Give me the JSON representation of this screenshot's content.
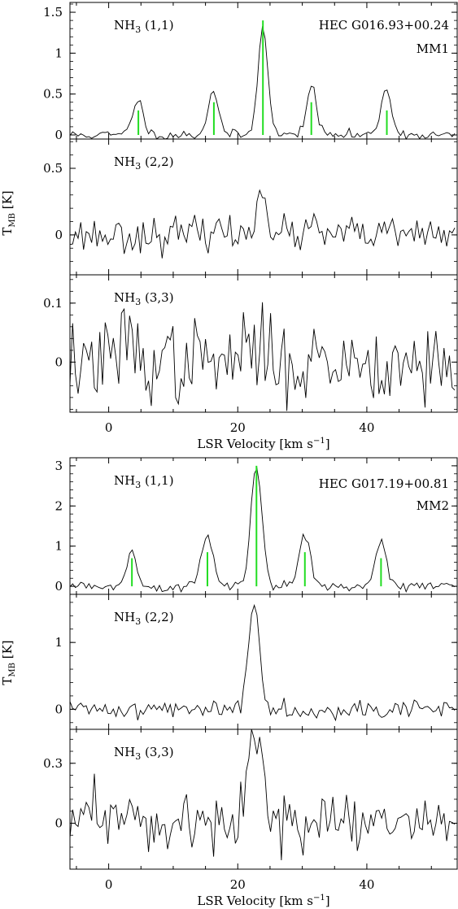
{
  "y_axis_label": {
    "main": "T",
    "sub": "MB",
    "unit": " [K]"
  },
  "x_axis_label": {
    "main": "LSR Velocity [km s",
    "sup": "−1",
    "close": "]"
  },
  "x_ticks": [
    "0",
    "20",
    "40"
  ],
  "colors": {
    "spectrum": "#000000",
    "hyperfine_markers": "#22dd22",
    "frame": "#000000"
  },
  "chart_data": [
    {
      "type": "line",
      "source": "HEC G016.93+00.24",
      "clump": "MM1",
      "xlim": [
        -6,
        54
      ],
      "panels": [
        {
          "transition": {
            "base": "NH",
            "sub": "3",
            "rest": " (1,1)"
          },
          "ylim": [
            -0.05,
            1.62
          ],
          "y_ticks": [
            0,
            0.5,
            1,
            1.5
          ],
          "y_tick_labels": [
            "0",
            "0.5",
            "1",
            "1.5"
          ],
          "hyperfine_markers": [
            {
              "x": 4.6,
              "height": 0.3
            },
            {
              "x": 16.3,
              "height": 0.4
            },
            {
              "x": 23.9,
              "height": 1.4
            },
            {
              "x": 31.4,
              "height": 0.4
            },
            {
              "x": 43.1,
              "height": 0.3
            }
          ],
          "peaks": [
            {
              "v": 4.5,
              "amp": 0.44,
              "w": 0.8
            },
            {
              "v": 16.2,
              "amp": 0.55,
              "w": 0.8
            },
            {
              "v": 23.9,
              "amp": 1.36,
              "w": 0.75
            },
            {
              "v": 31.4,
              "amp": 0.58,
              "w": 0.8
            },
            {
              "v": 43.0,
              "amp": 0.58,
              "w": 0.8
            }
          ],
          "noise": 0.03,
          "seed": 11
        },
        {
          "transition": {
            "base": "NH",
            "sub": "3",
            "rest": " (2,2)"
          },
          "ylim": [
            -0.3,
            0.72
          ],
          "y_ticks": [
            0,
            0.5
          ],
          "y_tick_labels": [
            "0",
            "0.5"
          ],
          "peaks": [
            {
              "v": 23.7,
              "amp": 0.42,
              "w": 0.7
            },
            {
              "v": 16.3,
              "amp": 0.08,
              "w": 0.6
            },
            {
              "v": 31.4,
              "amp": 0.05,
              "w": 0.6
            }
          ],
          "noise": 0.065,
          "seed": 23
        },
        {
          "transition": {
            "base": "NH",
            "sub": "3",
            "rest": " (3,3)"
          },
          "ylim": [
            -0.085,
            0.148
          ],
          "y_ticks": [
            0,
            0.1
          ],
          "y_tick_labels": [
            "0",
            "0.1"
          ],
          "peaks": [
            {
              "v": 3.0,
              "amp": 0.05,
              "w": 0.8
            },
            {
              "v": 22.5,
              "amp": 0.03,
              "w": 1.2
            }
          ],
          "noise": 0.035,
          "seed": 37
        }
      ]
    },
    {
      "type": "line",
      "source": "HEC G017.19+00.81",
      "clump": "MM2",
      "xlim": [
        -6,
        54
      ],
      "panels": [
        {
          "transition": {
            "base": "NH",
            "sub": "3",
            "rest": " (1,1)"
          },
          "ylim": [
            -0.2,
            3.2
          ],
          "y_ticks": [
            0,
            1,
            2,
            3
          ],
          "y_tick_labels": [
            "0",
            "1",
            "2",
            "3"
          ],
          "hyperfine_markers": [
            {
              "x": 3.6,
              "height": 0.7
            },
            {
              "x": 15.3,
              "height": 0.85
            },
            {
              "x": 22.9,
              "height": 3.0
            },
            {
              "x": 30.4,
              "height": 0.85
            },
            {
              "x": 42.2,
              "height": 0.7
            }
          ],
          "peaks": [
            {
              "v": 3.6,
              "amp": 0.82,
              "w": 0.85
            },
            {
              "v": 15.3,
              "amp": 1.3,
              "w": 0.9
            },
            {
              "v": 22.9,
              "amp": 3.0,
              "w": 0.85
            },
            {
              "v": 30.4,
              "amp": 1.3,
              "w": 0.9
            },
            {
              "v": 42.2,
              "amp": 1.15,
              "w": 0.9
            }
          ],
          "noise": 0.06,
          "seed": 5
        },
        {
          "transition": {
            "base": "NH",
            "sub": "3",
            "rest": " (2,2)"
          },
          "ylim": [
            -0.3,
            1.72
          ],
          "y_ticks": [
            0,
            1
          ],
          "y_tick_labels": [
            "0",
            "1"
          ],
          "peaks": [
            {
              "v": 22.5,
              "amp": 1.55,
              "w": 0.9
            }
          ],
          "noise": 0.07,
          "seed": 41
        },
        {
          "transition": {
            "base": "NH",
            "sub": "3",
            "rest": " (3,3)"
          },
          "ylim": [
            -0.23,
            0.47
          ],
          "y_ticks": [
            0,
            0.3
          ],
          "y_tick_labels": [
            "0",
            "0.3"
          ],
          "peaks": [
            {
              "v": 22.7,
              "amp": 0.42,
              "w": 1.2
            },
            {
              "v": 3.0,
              "amp": 0.08,
              "w": 1.0
            }
          ],
          "noise": 0.065,
          "seed": 59
        }
      ]
    }
  ]
}
